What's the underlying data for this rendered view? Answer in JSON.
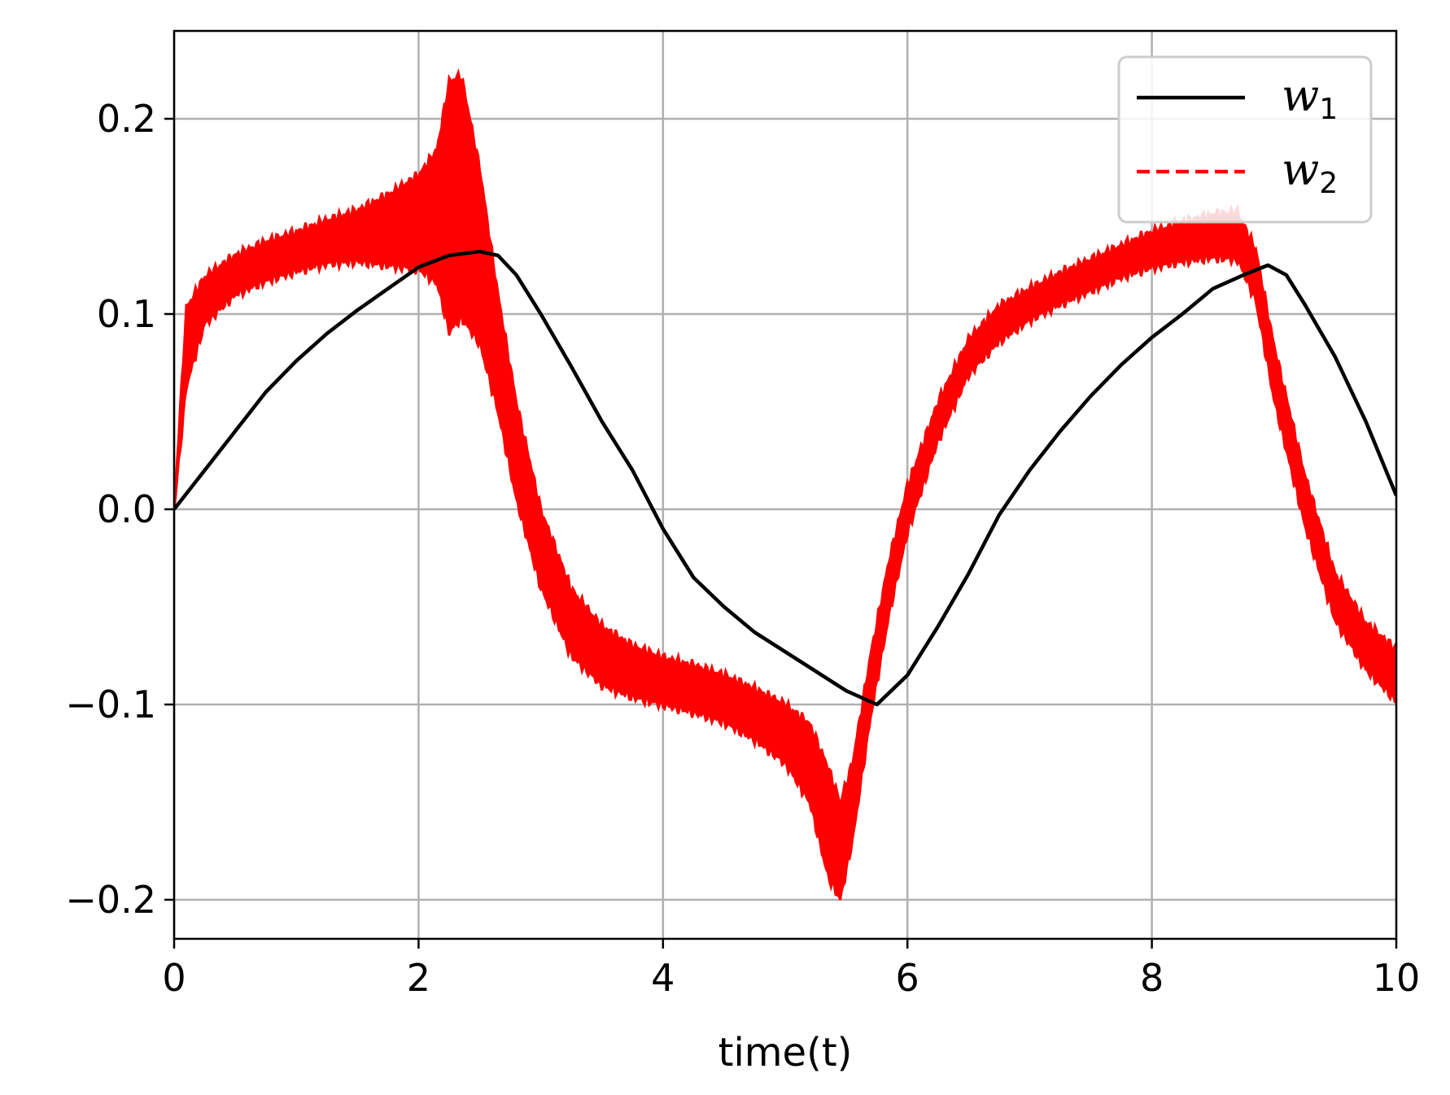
{
  "chart_data": {
    "type": "line",
    "title": "",
    "xlabel": "time(t)",
    "ylabel": "",
    "xlim": [
      0,
      10
    ],
    "ylim": [
      -0.22,
      0.245
    ],
    "xticks": [
      0,
      2,
      4,
      6,
      8,
      10
    ],
    "xtick_labels": [
      "0",
      "2",
      "4",
      "6",
      "8",
      "10"
    ],
    "yticks": [
      -0.2,
      -0.1,
      0.0,
      0.1,
      0.2
    ],
    "ytick_labels": [
      "−0.2",
      "−0.1",
      "0.0",
      "0.1",
      "0.2"
    ],
    "grid": true,
    "legend_position": "top-right",
    "series": [
      {
        "name": "w",
        "name_subscript": "1",
        "color": "#000000",
        "line_style": "solid",
        "x": [
          0,
          0.25,
          0.5,
          0.75,
          1.0,
          1.25,
          1.5,
          1.75,
          2.0,
          2.25,
          2.5,
          2.65,
          2.8,
          3.0,
          3.25,
          3.5,
          3.75,
          4.0,
          4.25,
          4.5,
          4.75,
          5.0,
          5.25,
          5.5,
          5.75,
          6.0,
          6.25,
          6.5,
          6.75,
          7.0,
          7.25,
          7.5,
          7.75,
          8.0,
          8.25,
          8.5,
          8.75,
          8.95,
          9.1,
          9.25,
          9.5,
          9.75,
          10.0
        ],
        "y": [
          0.0,
          0.02,
          0.04,
          0.06,
          0.076,
          0.09,
          0.102,
          0.113,
          0.124,
          0.13,
          0.132,
          0.13,
          0.12,
          0.1,
          0.073,
          0.045,
          0.02,
          -0.01,
          -0.035,
          -0.05,
          -0.063,
          -0.073,
          -0.083,
          -0.093,
          -0.1,
          -0.085,
          -0.06,
          -0.033,
          -0.003,
          0.02,
          0.04,
          0.058,
          0.074,
          0.088,
          0.1,
          0.113,
          0.12,
          0.125,
          0.12,
          0.105,
          0.078,
          0.045,
          0.007
        ]
      },
      {
        "name": "w",
        "name_subscript": "2",
        "color": "#ff0000",
        "line_style": "dashed",
        "x": [
          0,
          0.1,
          0.25,
          0.5,
          0.75,
          1.0,
          1.25,
          1.5,
          1.75,
          2.0,
          2.15,
          2.25,
          2.35,
          2.5,
          2.65,
          2.8,
          3.0,
          3.25,
          3.5,
          3.75,
          4.0,
          4.25,
          4.5,
          4.75,
          5.0,
          5.2,
          5.35,
          5.45,
          5.55,
          5.7,
          5.85,
          6.0,
          6.25,
          6.5,
          6.75,
          7.0,
          7.25,
          7.5,
          7.75,
          8.0,
          8.25,
          8.5,
          8.7,
          8.85,
          9.0,
          9.25,
          9.5,
          9.75,
          10.0
        ],
        "y": [
          0.0,
          0.083,
          0.107,
          0.12,
          0.127,
          0.132,
          0.137,
          0.14,
          0.143,
          0.147,
          0.15,
          0.155,
          0.16,
          0.13,
          0.08,
          0.03,
          -0.02,
          -0.058,
          -0.075,
          -0.083,
          -0.088,
          -0.092,
          -0.097,
          -0.105,
          -0.115,
          -0.13,
          -0.16,
          -0.175,
          -0.15,
          -0.09,
          -0.04,
          0.0,
          0.045,
          0.078,
          0.095,
          0.105,
          0.113,
          0.12,
          0.127,
          0.133,
          0.137,
          0.14,
          0.14,
          0.12,
          0.07,
          0.005,
          -0.045,
          -0.07,
          -0.085
        ],
        "amplitude": [
          0.0,
          0.02,
          0.012,
          0.01,
          0.01,
          0.01,
          0.011,
          0.013,
          0.018,
          0.024,
          0.034,
          0.064,
          0.062,
          0.045,
          0.03,
          0.025,
          0.02,
          0.017,
          0.015,
          0.013,
          0.012,
          0.012,
          0.012,
          0.013,
          0.015,
          0.02,
          0.028,
          0.025,
          0.02,
          0.016,
          0.014,
          0.012,
          0.01,
          0.009,
          0.009,
          0.008,
          0.008,
          0.008,
          0.008,
          0.009,
          0.01,
          0.011,
          0.012,
          0.013,
          0.014,
          0.013,
          0.012,
          0.012,
          0.013
        ]
      }
    ]
  }
}
